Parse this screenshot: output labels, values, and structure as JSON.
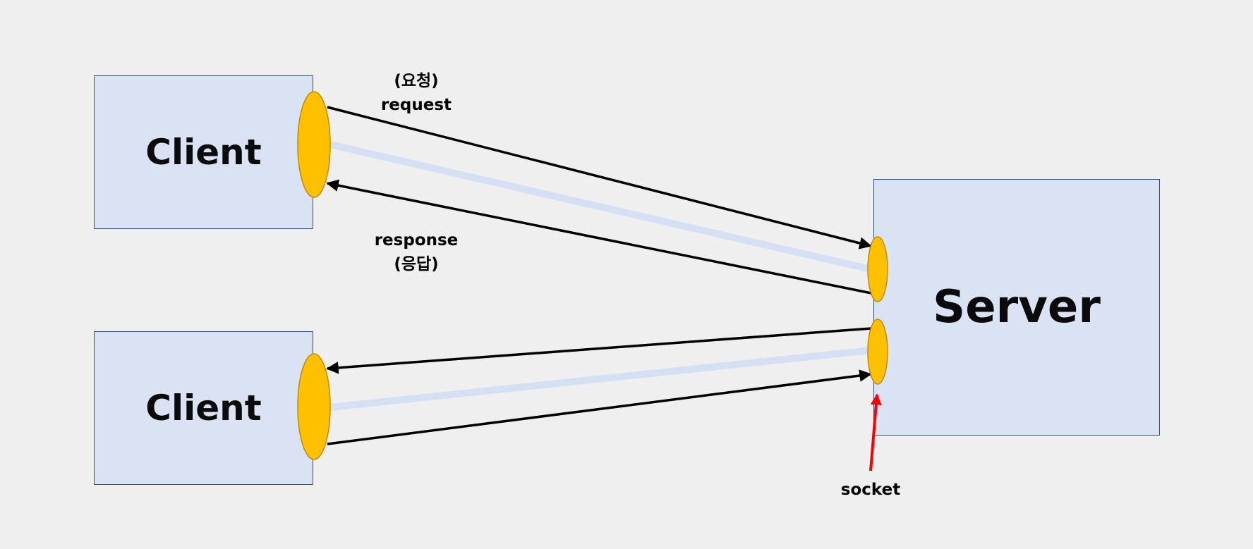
{
  "clients": [
    {
      "label": "Client"
    },
    {
      "label": "Client"
    }
  ],
  "server": {
    "label": "Server"
  },
  "request_label": {
    "ko": "(요청)",
    "en": "request"
  },
  "response_label": {
    "en": "response",
    "ko": "(응답)"
  },
  "socket_label": "socket",
  "colors": {
    "background": "#efefef",
    "box_fill": "#dae3f3",
    "box_border": "#2f4f8f",
    "socket_fill": "#ffc000",
    "socket_border": "#c08a00",
    "connection_band": "#d6e0f4",
    "arrow": "#000000",
    "pointer_arrow": "#ff0000"
  }
}
